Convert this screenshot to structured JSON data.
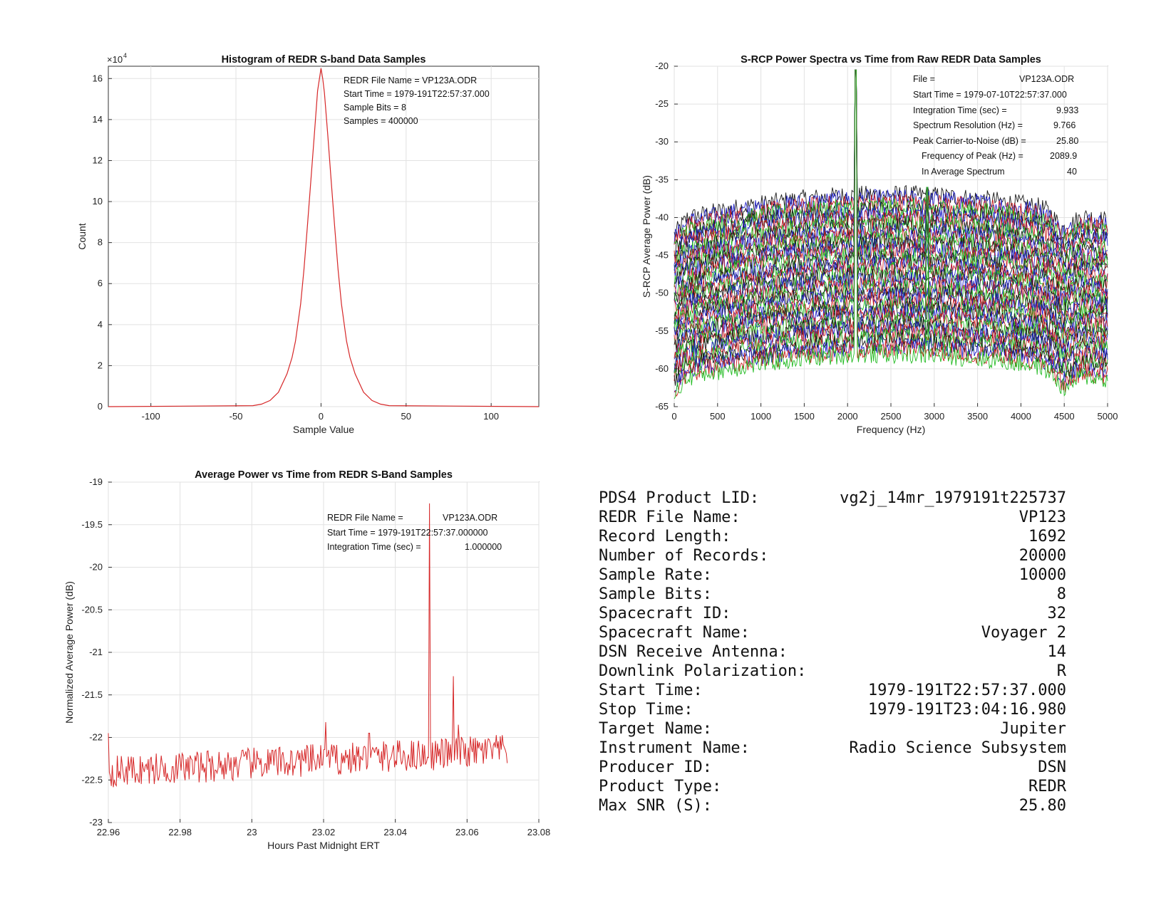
{
  "chart_data": [
    {
      "type": "line",
      "title": "Histogram of REDR S-band Data Samples",
      "xlabel": "Sample Value",
      "ylabel": "Count",
      "y_exponent_label": "×10",
      "y_exponent": "4",
      "xlim": [
        -125,
        128
      ],
      "ylim": [
        0,
        16.6
      ],
      "xticks": [
        -100,
        -50,
        0,
        50,
        100
      ],
      "yticks": [
        0,
        2,
        4,
        6,
        8,
        10,
        12,
        14,
        16
      ],
      "grid": true,
      "series": [
        {
          "color": "#d62728",
          "x": [
            -125,
            -40,
            -35,
            -30,
            -25,
            -20,
            -17,
            -15,
            -12,
            -10,
            -8,
            -6,
            -4,
            -2,
            0,
            1,
            2,
            4,
            6,
            8,
            10,
            12,
            15,
            17,
            20,
            25,
            30,
            35,
            40,
            128
          ],
          "y": [
            0,
            0.05,
            0.12,
            0.3,
            0.7,
            1.6,
            2.4,
            3.2,
            5.0,
            6.7,
            8.8,
            11.0,
            13.2,
            15.4,
            16.5,
            16.0,
            15.3,
            13.2,
            11.0,
            8.8,
            6.7,
            5.0,
            3.2,
            2.4,
            1.6,
            0.7,
            0.3,
            0.12,
            0.05,
            0
          ]
        }
      ],
      "annotations": [
        "REDR File Name = VP123A.ODR",
        "Start Time = 1979-191T22:57:37.000",
        "Sample Bits = 8",
        "Samples = 400000"
      ]
    },
    {
      "type": "line",
      "title": "S-RCP Power Spectra vs Time from Raw REDR Data Samples",
      "xlabel": "Frequency (Hz)",
      "ylabel": "S-RCP Average Power (dB)",
      "xlim": [
        0,
        5000
      ],
      "ylim": [
        -65,
        -20
      ],
      "xticks": [
        0,
        500,
        1000,
        1500,
        2000,
        2500,
        3000,
        3500,
        4000,
        4500,
        5000
      ],
      "yticks": [
        -20,
        -25,
        -30,
        -35,
        -40,
        -45,
        -50,
        -55,
        -60,
        -65
      ],
      "grid": true,
      "series_count": 40,
      "series_colors": [
        "#1a1a1a",
        "#2222cc",
        "#cc2222",
        "#22bb22"
      ],
      "noise_floor_top": -37,
      "noise_floor_bottom": -58,
      "peak": {
        "x": 2089.9,
        "y": -20.8
      },
      "annotations": [
        {
          "label": "File =",
          "value": "VP123A.ODR"
        },
        {
          "label": "Start Time = 1979-07-10T22:57:37.000",
          "value": ""
        },
        {
          "label": "Integration Time (sec) =",
          "value": "9.933"
        },
        {
          "label": "Spectrum Resolution (Hz) =",
          "value": "9.766"
        },
        {
          "label": "Peak Carrier-to-Noise (dB) =",
          "value": "25.80"
        },
        {
          "label": "Frequency of Peak (Hz) =",
          "value": "2089.9"
        },
        {
          "label": "In Average Spectrum",
          "value": "40"
        }
      ]
    },
    {
      "type": "line",
      "title": "Average Power vs Time from REDR S-Band Samples",
      "xlabel": "Hours Past Midnight ERT",
      "ylabel": "Normalized Average Power (dB)",
      "xlim": [
        22.96,
        23.08
      ],
      "ylim": [
        -23,
        -19
      ],
      "xticks": [
        "22.96",
        "22.98",
        "23",
        "23.02",
        "23.04",
        "23.06",
        "23.08"
      ],
      "yticks": [
        "-19",
        "-19.5",
        "-20",
        "-20.5",
        "-21",
        "-21.5",
        "-22",
        "-22.5",
        "-23"
      ],
      "grid": true,
      "series": [
        {
          "color": "#d62728",
          "x_start": 22.96,
          "x_end": 23.0712,
          "baseline_start": -22.4,
          "baseline_end": -22.15,
          "spikes": [
            {
              "x": 23.0495,
              "y": -19.25
            },
            {
              "x": 23.0562,
              "y": -21.28
            },
            {
              "x": 23.0205,
              "y": -21.82
            },
            {
              "x": 23.0327,
              "y": -21.95
            },
            {
              "x": 23.0575,
              "y": -21.85
            },
            {
              "x": 22.9601,
              "y": -21.95
            }
          ]
        }
      ],
      "annotations": [
        {
          "label": "REDR File Name =",
          "value": "VP123A.ODR"
        },
        {
          "label": "Start Time = 1979-191T22:57:37.000000",
          "value": ""
        },
        {
          "label": "Integration Time (sec) =",
          "value": "1.000000"
        }
      ]
    }
  ],
  "info_table": [
    {
      "label": "PDS4 Product LID:",
      "value": "vg2j_14mr_1979191t225737"
    },
    {
      "label": "REDR File Name:",
      "value": "VP123"
    },
    {
      "label": "Record Length:",
      "value": "1692"
    },
    {
      "label": "Number of Records:",
      "value": "20000"
    },
    {
      "label": "Sample Rate:",
      "value": "10000"
    },
    {
      "label": "Sample Bits:",
      "value": "8"
    },
    {
      "label": "Spacecraft ID:",
      "value": "32"
    },
    {
      "label": "Spacecraft Name:",
      "value": "Voyager 2"
    },
    {
      "label": "DSN Receive Antenna:",
      "value": "14"
    },
    {
      "label": "Downlink Polarization:",
      "value": "R"
    },
    {
      "label": "Start Time:",
      "value": "1979-191T22:57:37.000"
    },
    {
      "label": "Stop Time:",
      "value": "1979-191T23:04:16.980"
    },
    {
      "label": "Target Name:",
      "value": "Jupiter"
    },
    {
      "label": "Instrument Name:",
      "value": "Radio Science Subsystem"
    },
    {
      "label": "Producer ID:",
      "value": "DSN"
    },
    {
      "label": "Product Type:",
      "value": "REDR"
    },
    {
      "label": "Max SNR (S):",
      "value": "25.80"
    }
  ]
}
